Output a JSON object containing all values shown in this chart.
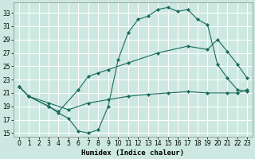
{
  "xlabel": "Humidex (Indice chaleur)",
  "background_color": "#cce8e0",
  "grid_color": "#ffffff",
  "line_color": "#1a6b5e",
  "ylim": [
    14.5,
    34.5
  ],
  "xlim": [
    -0.5,
    23.5
  ],
  "yticks": [
    15,
    17,
    19,
    21,
    23,
    25,
    27,
    29,
    31,
    33
  ],
  "xticks": [
    0,
    1,
    2,
    3,
    4,
    5,
    6,
    7,
    8,
    9,
    10,
    11,
    12,
    13,
    14,
    15,
    16,
    17,
    18,
    19,
    20,
    21,
    22,
    23
  ],
  "line1_x": [
    0,
    1,
    3,
    4,
    5,
    6,
    7,
    8,
    9,
    10,
    11,
    12,
    13,
    14,
    15,
    16,
    17,
    18,
    19,
    20,
    21,
    22,
    23
  ],
  "line1_y": [
    22,
    20.5,
    19.0,
    18.0,
    17.2,
    15.3,
    15.0,
    15.5,
    19.0,
    26.0,
    30.0,
    32.0,
    32.5,
    33.5,
    33.8,
    33.2,
    33.5,
    32.0,
    31.2,
    25.3,
    23.2,
    21.5,
    21.2
  ],
  "line2_x": [
    0,
    1,
    3,
    4,
    6,
    7,
    8,
    9,
    11,
    14,
    17,
    19,
    20,
    21,
    22,
    23
  ],
  "line2_y": [
    22,
    20.5,
    19.0,
    18.2,
    21.5,
    23.5,
    24.0,
    24.5,
    25.5,
    27.0,
    28.0,
    27.5,
    29.0,
    27.2,
    25.3,
    23.2
  ],
  "line3_x": [
    0,
    1,
    3,
    5,
    7,
    9,
    11,
    13,
    15,
    17,
    19,
    21,
    22,
    23
  ],
  "line3_y": [
    22,
    20.5,
    19.5,
    18.5,
    19.5,
    20.0,
    20.5,
    20.8,
    21.0,
    21.2,
    21.0,
    21.0,
    21.0,
    21.5
  ]
}
